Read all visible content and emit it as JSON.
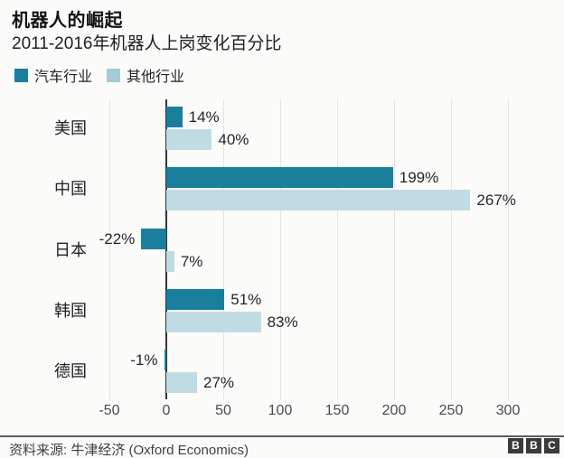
{
  "header": {
    "title": "机器人的崛起",
    "subtitle": "2011-2016年机器人上岗变化百分比"
  },
  "legend": {
    "items": [
      {
        "label": "汽车行业",
        "color": "#1a7e9d"
      },
      {
        "label": "其他行业",
        "color": "#a6cbd3"
      }
    ]
  },
  "chart_data": {
    "type": "bar",
    "orientation": "horizontal",
    "title": "机器人的崛起",
    "subtitle": "2011-2016年机器人上岗变化百分比",
    "categories": [
      "美国",
      "中国",
      "日本",
      "韩国",
      "德国"
    ],
    "series": [
      {
        "name": "汽车行业",
        "color": "#1a7e9d",
        "values": [
          14,
          199,
          -22,
          51,
          -1
        ]
      },
      {
        "name": "其他行业",
        "color": "#c0dbe3",
        "values": [
          40,
          267,
          7,
          83,
          27
        ]
      }
    ],
    "value_labels": [
      [
        "14%",
        "199%",
        "-22%",
        "51%",
        "-1%"
      ],
      [
        "40%",
        "267%",
        "7%",
        "83%",
        "27%"
      ]
    ],
    "x_ticks": [
      -50,
      0,
      50,
      100,
      150,
      200,
      250,
      300
    ],
    "xlim": [
      -50,
      320
    ],
    "xlabel": "",
    "ylabel": "",
    "grid": "vertical-only",
    "legend_position": "top-left"
  },
  "footer": {
    "source": "资料来源: 牛津经济 (Oxford Economics)",
    "logo_blocks": [
      "B",
      "B",
      "C"
    ]
  },
  "colors": {
    "series_auto": "#1a7e9d",
    "series_other": "#c0dbe3",
    "zero_axis": "#333333",
    "gridline": "#e3e3df",
    "background": "#fbfbfa"
  }
}
